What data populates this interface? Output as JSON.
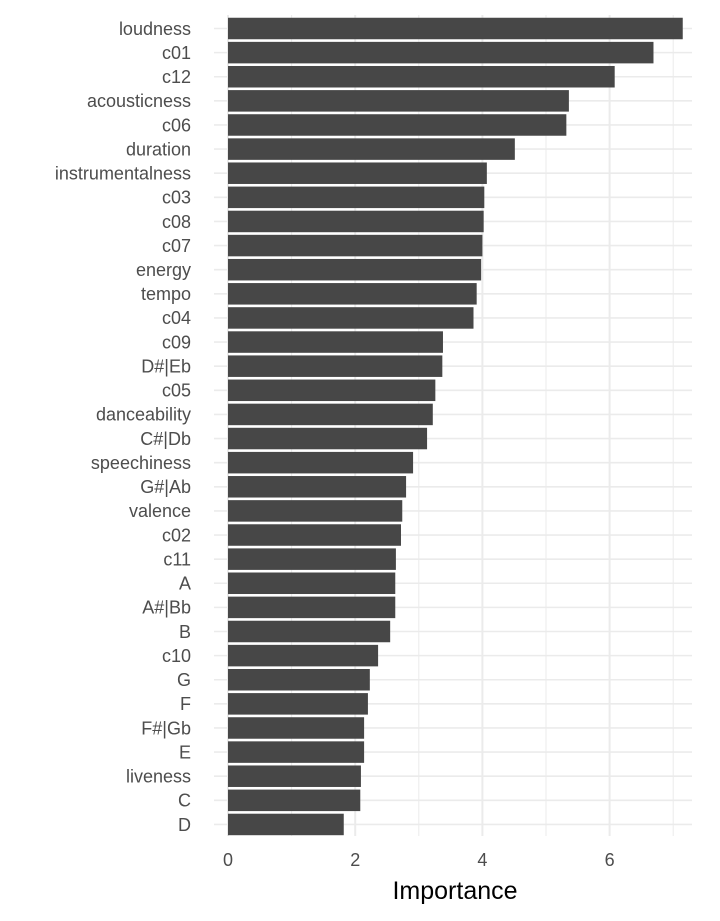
{
  "chart_data": {
    "type": "bar",
    "orientation": "horizontal",
    "xlabel": "Importance",
    "ylabel": "",
    "xlim": [
      0,
      7.2
    ],
    "x_ticks": [
      0,
      2,
      4,
      6
    ],
    "grid": true,
    "legend": "none",
    "bar_color": "#474747",
    "grid_color": "#ebebeb",
    "categories": [
      "loudness",
      "c01",
      "c12",
      "acousticness",
      "c06",
      "duration",
      "instrumentalness",
      "c03",
      "c08",
      "c07",
      "energy",
      "tempo",
      "c04",
      "c09",
      "D#|Eb",
      "c05",
      "danceability",
      "C#|Db",
      "speechiness",
      "G#|Ab",
      "valence",
      "c02",
      "c11",
      "A",
      "A#|Bb",
      "B",
      "c10",
      "G",
      "F",
      "F#|Gb",
      "E",
      "liveness",
      "C",
      "D"
    ],
    "values": [
      7.15,
      6.69,
      6.08,
      5.36,
      5.32,
      4.51,
      4.07,
      4.03,
      4.02,
      4.0,
      3.98,
      3.91,
      3.86,
      3.38,
      3.37,
      3.26,
      3.22,
      3.13,
      2.91,
      2.8,
      2.74,
      2.72,
      2.64,
      2.63,
      2.63,
      2.55,
      2.36,
      2.23,
      2.2,
      2.14,
      2.14,
      2.09,
      2.08,
      1.82
    ]
  }
}
